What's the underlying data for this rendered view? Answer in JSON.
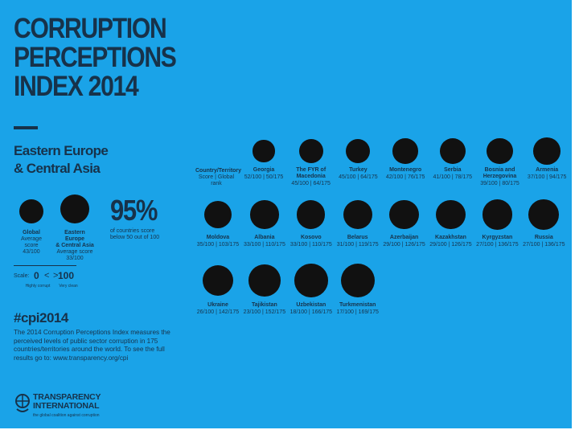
{
  "page": {
    "title_lines": [
      "CORRUPTION",
      "PERCEPTIONS",
      "INDEX 2014"
    ],
    "region_lines": [
      "Eastern Europe",
      "& Central Asia"
    ],
    "hashtag": "#cpi2014",
    "description": "The 2014 Corruption Perceptions Index measures the perceived levels of public sector corruption in 175 countries/territories around the world. To see the full results go to: www.transparency.org/cpi",
    "background_color": "#1aa3e8",
    "text_color": "#17324a",
    "dot_color": "#111111"
  },
  "legend": {
    "global": {
      "name": "Global",
      "sub": "Average score",
      "value": "43/100"
    },
    "region": {
      "name": "Eastern Europe",
      "name2": "& Central Asia",
      "sub": "Average score",
      "value": "33/100"
    },
    "percent": {
      "value": "95%",
      "label": "of countries score below 50 out of 100"
    }
  },
  "scale": {
    "label": "Scale:",
    "min": "0",
    "lt": "<",
    "gt": ">",
    "max": "100",
    "min_label": "Highly corrupt",
    "max_label": "Very clean"
  },
  "table_header": {
    "title": "Country/Territory",
    "sub": "Score | Global rank"
  },
  "logo": {
    "name_lines": [
      "TRANSPARENCY",
      "INTERNATIONAL"
    ],
    "tagline": "the global coalition against corruption",
    "icon": "transparency-international-logo-icon"
  },
  "chart_data": {
    "type": "scatter",
    "title": "CORRUPTION PERCEPTIONS INDEX 2014",
    "subtitle": "Eastern Europe & Central Asia",
    "encoding": "circle size decreases as score increases",
    "value_max": 100,
    "global_average": 43,
    "regional_average": 33,
    "rows": [
      [
        {
          "name": "Georgia",
          "score": 52,
          "rank": 50
        },
        {
          "name": "The FYR of Macedonia",
          "score": 45,
          "rank": 64
        },
        {
          "name": "Turkey",
          "score": 45,
          "rank": 64
        },
        {
          "name": "Montenegro",
          "score": 42,
          "rank": 76
        },
        {
          "name": "Serbia",
          "score": 41,
          "rank": 78
        },
        {
          "name": "Bosnia and Herzegovina",
          "score": 39,
          "rank": 80
        },
        {
          "name": "Armenia",
          "score": 37,
          "rank": 94
        }
      ],
      [
        {
          "name": "Moldova",
          "score": 35,
          "rank": 103
        },
        {
          "name": "Albania",
          "score": 33,
          "rank": 110
        },
        {
          "name": "Kosovo",
          "score": 33,
          "rank": 110
        },
        {
          "name": "Belarus",
          "score": 31,
          "rank": 119
        },
        {
          "name": "Azerbaijan",
          "score": 29,
          "rank": 126
        },
        {
          "name": "Kazakhstan",
          "score": 29,
          "rank": 126
        },
        {
          "name": "Kyrgyzstan",
          "score": 27,
          "rank": 136
        },
        {
          "name": "Russia",
          "score": 27,
          "rank": 136
        }
      ],
      [
        {
          "name": "Ukraine",
          "score": 26,
          "rank": 142
        },
        {
          "name": "Tajikistan",
          "score": 23,
          "rank": 152
        },
        {
          "name": "Uzbekistan",
          "score": 18,
          "rank": 166
        },
        {
          "name": "Turkmenistan",
          "score": 17,
          "rank": 169
        }
      ]
    ]
  }
}
